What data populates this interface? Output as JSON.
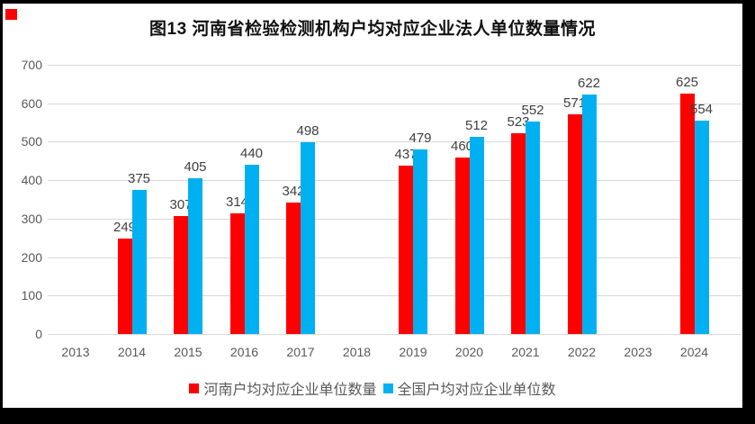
{
  "decor": {
    "corner_marker_color": "#ff0000",
    "frame_color": "#000000",
    "panel_background": "#ffffff"
  },
  "chart_data": {
    "type": "bar",
    "title": "图13  河南省检验检测机构户均对应企业法人单位数量情况",
    "categories": [
      "2013",
      "2014",
      "2015",
      "2016",
      "2017",
      "2018",
      "2019",
      "2020",
      "2021",
      "2022",
      "2023",
      "2024"
    ],
    "series": [
      {
        "name": "河南户均对应企业单位数量",
        "color": "#ff0000",
        "values": [
          null,
          249,
          307,
          314,
          342,
          null,
          437,
          460,
          523,
          571,
          null,
          625
        ]
      },
      {
        "name": "全国户均对应企业单位数",
        "color": "#00b0f0",
        "values": [
          null,
          375,
          405,
          440,
          498,
          null,
          479,
          512,
          552,
          622,
          null,
          554
        ]
      }
    ],
    "xlabel": "",
    "ylabel": "",
    "ylim": [
      0,
      700
    ],
    "yticks": [
      0,
      100,
      200,
      300,
      400,
      500,
      600,
      700
    ],
    "grid": true,
    "gridline_color": "#d9d9d9",
    "axis_text_color": "#595959",
    "value_label_color": "#404040",
    "legend_position": "bottom"
  }
}
